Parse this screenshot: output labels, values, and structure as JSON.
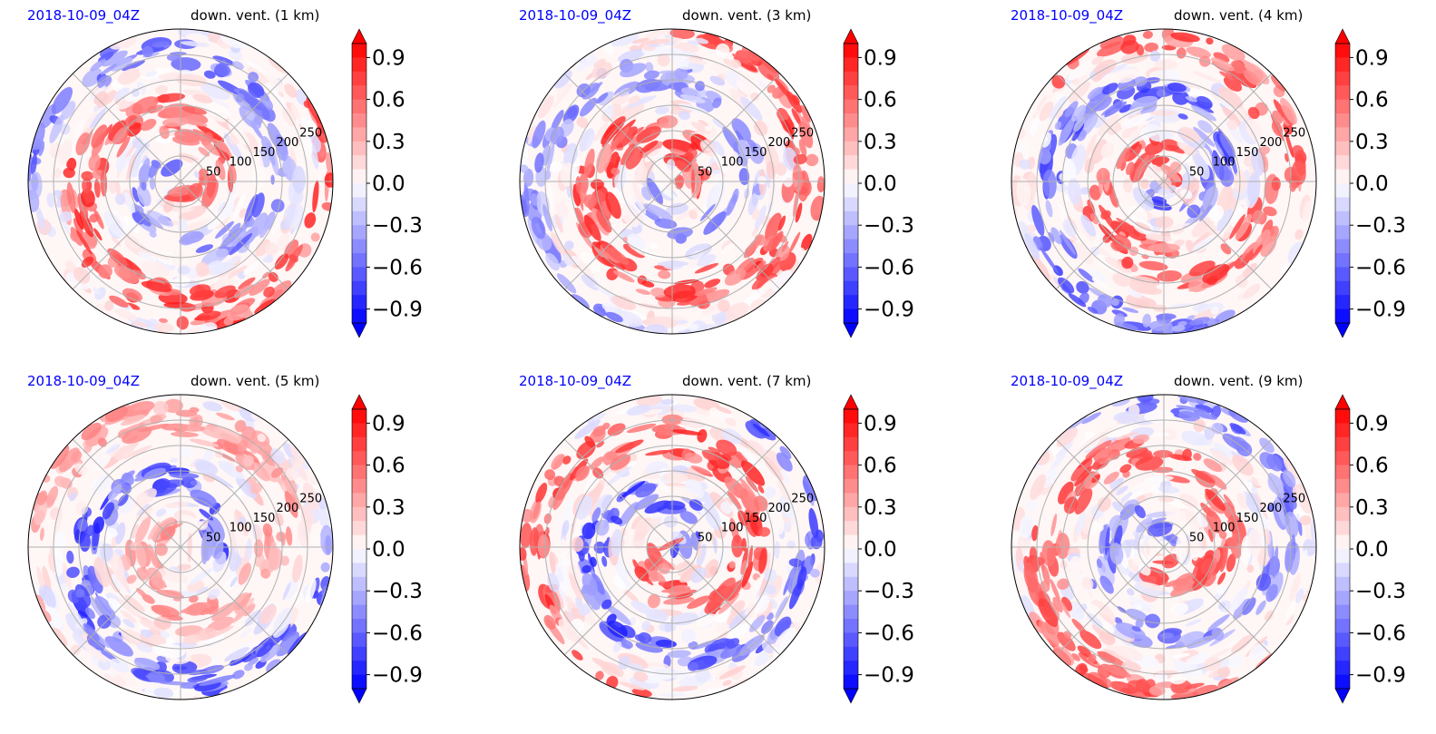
{
  "chart_data": [
    {
      "type": "heatmap",
      "projection": "polar",
      "title_left": "2018-10-09_04Z",
      "title_right": "down. vent. (1 km)",
      "radial_ticks": [
        50,
        100,
        150,
        200,
        250
      ],
      "grid": true,
      "colorbar": {
        "ticks": [
          "0.9",
          "0.6",
          "0.3",
          "0.0",
          "−0.3",
          "−0.6",
          "−0.9"
        ],
        "range": [
          -1,
          1
        ],
        "extend": "both",
        "cmap": "bwr"
      }
    },
    {
      "type": "heatmap",
      "projection": "polar",
      "title_left": "2018-10-09_04Z",
      "title_right": "down. vent. (3 km)",
      "radial_ticks": [
        50,
        100,
        150,
        200,
        250
      ],
      "grid": true,
      "colorbar": {
        "ticks": [
          "0.9",
          "0.6",
          "0.3",
          "0.0",
          "−0.3",
          "−0.6",
          "−0.9"
        ],
        "range": [
          -1,
          1
        ],
        "extend": "both",
        "cmap": "bwr"
      }
    },
    {
      "type": "heatmap",
      "projection": "polar",
      "title_left": "2018-10-09_04Z",
      "title_right": "down. vent. (4 km)",
      "radial_ticks": [
        50,
        100,
        150,
        200,
        250
      ],
      "grid": true,
      "colorbar": {
        "ticks": [
          "0.9",
          "0.6",
          "0.3",
          "0.0",
          "−0.3",
          "−0.6",
          "−0.9"
        ],
        "range": [
          -1,
          1
        ],
        "extend": "both",
        "cmap": "bwr"
      }
    },
    {
      "type": "heatmap",
      "projection": "polar",
      "title_left": "2018-10-09_04Z",
      "title_right": "down. vent. (5 km)",
      "radial_ticks": [
        50,
        100,
        150,
        200,
        250
      ],
      "grid": true,
      "colorbar": {
        "ticks": [
          "0.9",
          "0.6",
          "0.3",
          "0.0",
          "−0.3",
          "−0.6",
          "−0.9"
        ],
        "range": [
          -1,
          1
        ],
        "extend": "both",
        "cmap": "bwr"
      }
    },
    {
      "type": "heatmap",
      "projection": "polar",
      "title_left": "2018-10-09_04Z",
      "title_right": "down. vent. (7 km)",
      "radial_ticks": [
        50,
        100,
        150,
        200,
        250
      ],
      "grid": true,
      "colorbar": {
        "ticks": [
          "0.9",
          "0.6",
          "0.3",
          "0.0",
          "−0.3",
          "−0.6",
          "−0.9"
        ],
        "range": [
          -1,
          1
        ],
        "extend": "both",
        "cmap": "bwr"
      }
    },
    {
      "type": "heatmap",
      "projection": "polar",
      "title_left": "2018-10-09_04Z",
      "title_right": "down. vent. (9 km)",
      "radial_ticks": [
        50,
        100,
        150,
        200,
        250
      ],
      "grid": true,
      "colorbar": {
        "ticks": [
          "0.9",
          "0.6",
          "0.3",
          "0.0",
          "−0.3",
          "−0.6",
          "−0.9"
        ],
        "range": [
          -1,
          1
        ],
        "extend": "both",
        "cmap": "bwr"
      }
    }
  ],
  "colors": {
    "positive": "#ff0000",
    "negative": "#0000ff",
    "zero": "#ffffff",
    "date_title": "#0000ff",
    "grid": "#b0b0b0"
  }
}
